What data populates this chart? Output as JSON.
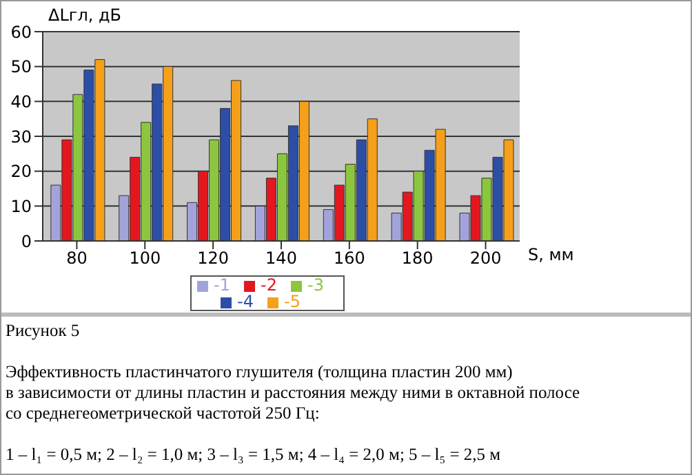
{
  "chart_data": {
    "type": "bar",
    "ylabel": "ΔLгл, дБ",
    "xlabel": "S, мм",
    "categories": [
      "80",
      "100",
      "120",
      "140",
      "160",
      "180",
      "200"
    ],
    "series": [
      {
        "name": "-1",
        "color": "#a3a3dc",
        "values": [
          16,
          13,
          11,
          10,
          9,
          8,
          8
        ]
      },
      {
        "name": "-2",
        "color": "#e3171e",
        "values": [
          29,
          24,
          20,
          18,
          16,
          14,
          13
        ]
      },
      {
        "name": "-3",
        "color": "#8cc63e",
        "values": [
          42,
          34,
          29,
          25,
          22,
          20,
          18
        ]
      },
      {
        "name": "-4",
        "color": "#2d4ea6",
        "values": [
          49,
          45,
          38,
          33,
          29,
          26,
          24
        ]
      },
      {
        "name": "-5",
        "color": "#f5a01a",
        "values": [
          52,
          50,
          46,
          40,
          35,
          32,
          29
        ]
      }
    ],
    "ylim": [
      0,
      60
    ],
    "yticks": [
      0,
      10,
      20,
      30,
      40,
      50,
      60
    ],
    "grid": "y",
    "legend": "bottom",
    "annotations": [
      "Рисунок 5",
      "Эффективность пластинчатого глушителя (толщина пластин 200 мм)\nв зависимости от длины пластин и расстояния между ними в октавной полосе\nсо среднегеометрической частотой 250 Гц:",
      "1 – l₁ = 0,5 м; 2 – l₂ = 1,0 м; 3 – l₃ = 1,5 м; 4 – l₄ = 2,0 м; 5 – l₅ = 2,5 м"
    ]
  }
}
